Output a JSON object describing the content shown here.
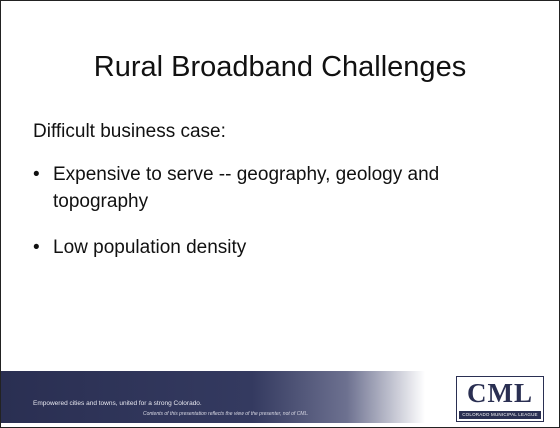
{
  "slide": {
    "title": "Rural Broadband Challenges",
    "intro": "Difficult business case:",
    "bullets": [
      "Expensive to serve -- geography, geology and topography",
      "Low population density"
    ],
    "footer": {
      "tagline": "Empowered cities and towns, united for a strong Colorado.",
      "disclaimer": "Contents of this presentation reflects the view of the presenter, not of CML."
    },
    "logo": {
      "text": "CML",
      "subtext": "COLORADO MUNICIPAL LEAGUE"
    }
  }
}
